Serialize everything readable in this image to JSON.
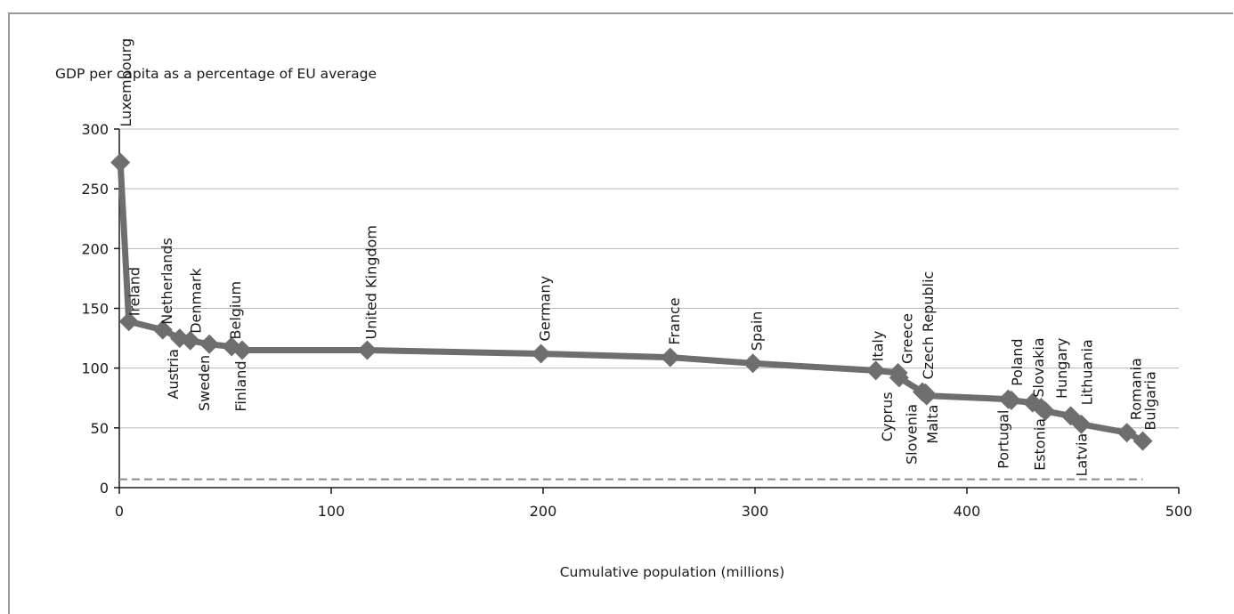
{
  "chart_data": {
    "type": "line",
    "title": "",
    "ylabel": "GDP per capita as a percentage of EU average",
    "xlabel": "Cumulative population (millions)",
    "xlim": [
      0,
      500
    ],
    "ylim": [
      0,
      300
    ],
    "x_ticks": [
      0,
      100,
      200,
      300,
      400,
      500
    ],
    "y_ticks": [
      0,
      50,
      100,
      150,
      200,
      250,
      300
    ],
    "grid": "horizontal",
    "reference_line_y": 7,
    "series": [
      {
        "marker": "diamond",
        "color": "#6e6e6e",
        "points": [
          {
            "label": "Luxembourg",
            "x": 0.5,
            "y": 272
          },
          {
            "label": "Ireland",
            "x": 4.5,
            "y": 139
          },
          {
            "label": "Netherlands",
            "x": 20.5,
            "y": 132
          },
          {
            "label": "Austria",
            "x": 28.5,
            "y": 125
          },
          {
            "label": "Denmark",
            "x": 33.5,
            "y": 123
          },
          {
            "label": "Sweden",
            "x": 42.5,
            "y": 120
          },
          {
            "label": "Belgium",
            "x": 53,
            "y": 118
          },
          {
            "label": "Finland",
            "x": 58,
            "y": 115
          },
          {
            "label": "United Kingdom",
            "x": 117,
            "y": 115
          },
          {
            "label": "Germany",
            "x": 199,
            "y": 112
          },
          {
            "label": "France",
            "x": 260,
            "y": 109
          },
          {
            "label": "Spain",
            "x": 299,
            "y": 104
          },
          {
            "label": "Italy",
            "x": 357,
            "y": 98
          },
          {
            "label": "Greece",
            "x": 367.5,
            "y": 96
          },
          {
            "label": "Cyprus",
            "x": 368,
            "y": 92
          },
          {
            "label": "Czech Republic",
            "x": 379,
            "y": 80
          },
          {
            "label": "Slovenia",
            "x": 380.5,
            "y": 79
          },
          {
            "label": "Malta",
            "x": 381,
            "y": 77
          },
          {
            "label": "Portugal",
            "x": 419.5,
            "y": 74
          },
          {
            "label": "Poland",
            "x": 421,
            "y": 73
          },
          {
            "label": "Slovakia",
            "x": 431,
            "y": 71
          },
          {
            "label": "Estonia",
            "x": 435,
            "y": 67
          },
          {
            "label": "Hungary",
            "x": 437,
            "y": 64
          },
          {
            "label": "Lithuania",
            "x": 449,
            "y": 60
          },
          {
            "label": "Latvia",
            "x": 454,
            "y": 53
          },
          {
            "label": "Romania",
            "x": 475.5,
            "y": 46
          },
          {
            "label": "Bulgaria",
            "x": 483,
            "y": 39
          }
        ]
      }
    ]
  }
}
